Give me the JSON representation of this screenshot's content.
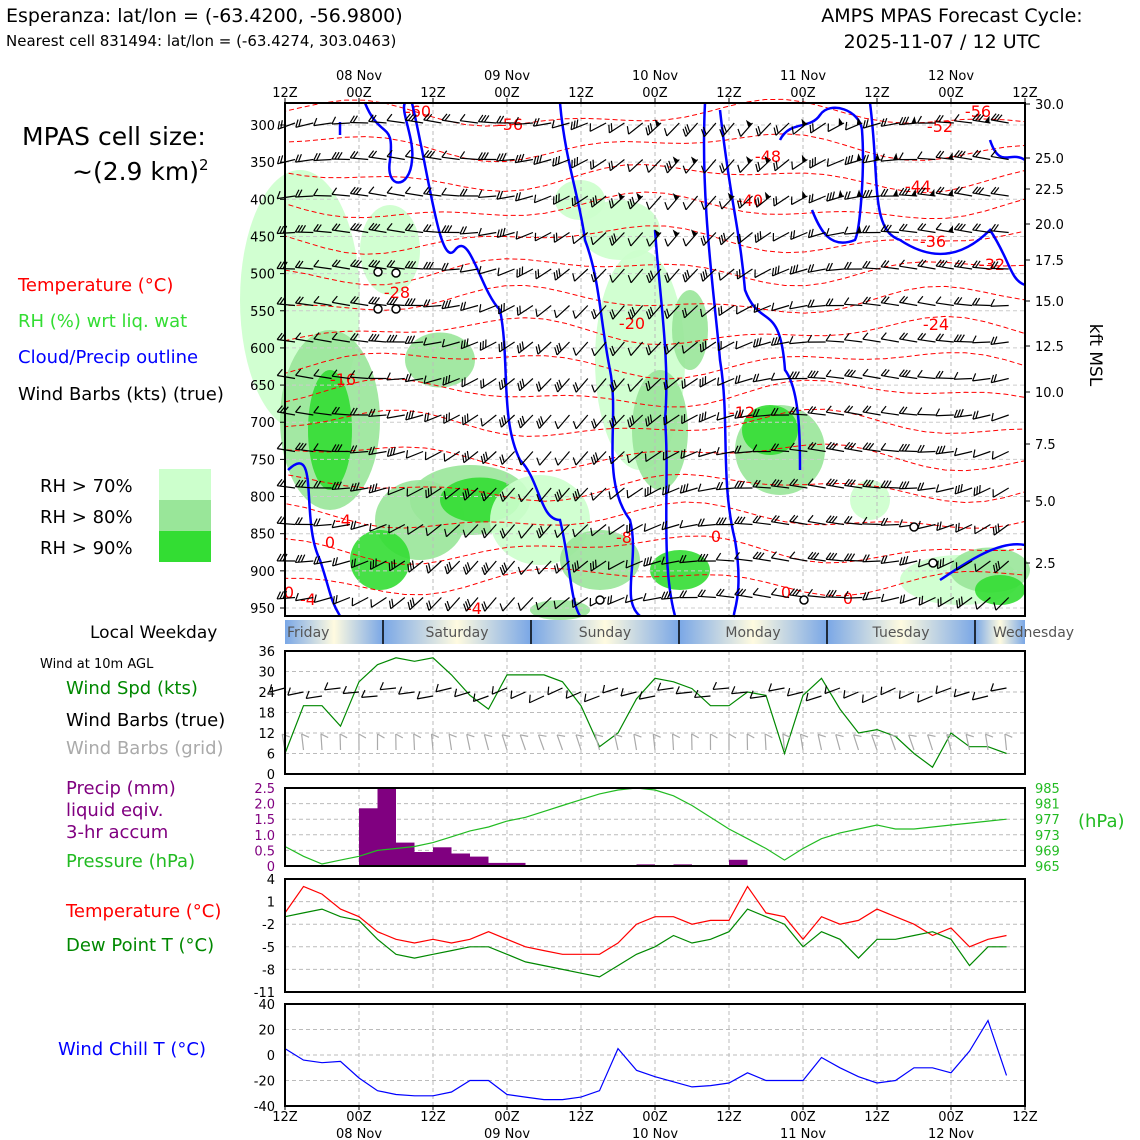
{
  "header": {
    "title_left_1": "Esperanza: lat/lon = (-63.4200, -56.9800)",
    "title_left_2": "Nearest cell 831494: lat/lon = (-63.4274, 303.0463)",
    "title_right_1": "AMPS MPAS Forecast Cycle:",
    "title_right_2": "2025-11-07 / 12 UTC"
  },
  "legend": {
    "cell_size_1": "MPAS cell size:",
    "cell_size_2": "~(2.9 km)",
    "cell_size_sup": "2",
    "temperature": "Temperature (°C)",
    "rh": "RH (%) wrt liq. wat",
    "cloud": "Cloud/Precip outline",
    "wind": "Wind Barbs (kts) (true)",
    "rh70": "RH > 70%",
    "rh80": "RH > 80%",
    "rh90": "RH > 90%",
    "rh70_color": "#ccffcc",
    "rh80_color": "#99e699",
    "rh90_color": "#33dd33"
  },
  "time_axis": {
    "hour_labels": [
      "12Z",
      "00Z",
      "12Z",
      "00Z",
      "12Z",
      "00Z",
      "12Z",
      "00Z",
      "12Z",
      "00Z",
      "12Z"
    ],
    "date_labels": [
      "08 Nov",
      "09 Nov",
      "10 Nov",
      "11 Nov",
      "12 Nov"
    ]
  },
  "weekday": {
    "label": "Local Weekday",
    "days": [
      "Friday",
      "Saturday",
      "Sunday",
      "Monday",
      "Tuesday",
      "Wednesday"
    ]
  },
  "panels": {
    "wind_title": "Wind at 10m AGL",
    "wind_spd": "Wind Spd (kts)",
    "wind_barbs_true": "Wind Barbs (true)",
    "wind_barbs_grid": "Wind Barbs (grid)",
    "precip_1": "Precip (mm)",
    "precip_2": "liquid eqiv.",
    "precip_3": "3-hr accum",
    "pressure": "Pressure (hPa)",
    "hpa_unit": "(hPa)",
    "temp": "Temperature (°C)",
    "dewpoint": "Dew Point T (°C)",
    "windchill": "Wind Chill T (°C)"
  },
  "chart_data": [
    {
      "type": "contour",
      "name": "cross-section",
      "y_pressure_ticks": [
        "300",
        "350",
        "400",
        "450",
        "500",
        "550",
        "600",
        "650",
        "700",
        "750",
        "800",
        "850",
        "900",
        "950"
      ],
      "y_right_kft_ticks": [
        "30.0",
        "25.0",
        "22.5",
        "20.0",
        "17.5",
        "15.0",
        "12.5",
        "10.0",
        "7.5",
        "5.0",
        "2.5"
      ],
      "y_right_label": "kft MSL",
      "temp_contour_labels": [
        "-60",
        "-56",
        "-52",
        "-56",
        "-48",
        "-44",
        "-40",
        "-36",
        "-32",
        "-28",
        "-24",
        "-20",
        "-16",
        "-12",
        "-8",
        "-4",
        "0",
        "0",
        "0",
        "0",
        "0",
        "-4",
        "-4"
      ]
    },
    {
      "type": "line",
      "name": "wind-speed",
      "ylim": [
        0,
        36
      ],
      "yticks": [
        "0",
        "6",
        "12",
        "18",
        "24",
        "30",
        "36"
      ],
      "values": [
        6,
        20,
        20,
        14,
        27,
        32,
        34,
        33,
        34,
        29,
        23,
        19,
        29,
        29,
        29,
        27,
        20,
        8,
        12,
        22,
        28,
        27,
        25,
        20,
        20,
        24,
        23,
        6,
        23,
        28,
        19,
        12,
        13,
        11,
        6,
        2,
        12,
        8,
        8,
        6
      ]
    },
    {
      "type": "bar+line",
      "name": "precip-pressure",
      "precip_ylim": [
        0,
        2.5
      ],
      "precip_ticks": [
        "0",
        "0.5",
        "1.0",
        "1.5",
        "2.0",
        "2.5"
      ],
      "precip_values": [
        0,
        0,
        0,
        0,
        1.85,
        2.5,
        0.75,
        0.45,
        0.6,
        0.4,
        0.3,
        0.1,
        0.1,
        0,
        0,
        0,
        0,
        0,
        0,
        0.05,
        0,
        0.05,
        0.03,
        0,
        0.2,
        0,
        0,
        0,
        0,
        0,
        0,
        0,
        0,
        0,
        0,
        0,
        0,
        0,
        0,
        0
      ],
      "pressure_ylim": [
        965,
        985
      ],
      "pressure_ticks": [
        "965",
        "969",
        "973",
        "977",
        "981",
        "985"
      ],
      "pressure_values": [
        970,
        967.5,
        965.5,
        966.5,
        967.5,
        969,
        969.5,
        970,
        971,
        972.5,
        974,
        975,
        976.5,
        977.5,
        979,
        980.5,
        982,
        983.5,
        984.5,
        985,
        984.5,
        983,
        980.5,
        977.5,
        974.5,
        972,
        969.5,
        966.5,
        969.5,
        972,
        973.5,
        974.5,
        975.5,
        974.5,
        974.5,
        975,
        975.5,
        976,
        976.5,
        977
      ]
    },
    {
      "type": "line",
      "name": "temperature-dewpoint",
      "ylim": [
        -11,
        4
      ],
      "yticks": [
        "-11",
        "-8",
        "-5",
        "-2",
        "1",
        "4"
      ],
      "series": [
        {
          "name": "Temperature",
          "values": [
            -0.5,
            3,
            2,
            0,
            -1,
            -3,
            -4,
            -4.5,
            -4,
            -4.5,
            -4,
            -3,
            -4,
            -5,
            -5.5,
            -6,
            -6,
            -6,
            -4.5,
            -2,
            -1,
            -1,
            -2,
            -1.5,
            -1.5,
            3,
            -0.5,
            -1,
            -4,
            -1,
            -2,
            -1.5,
            0,
            -1,
            -2,
            -3.5,
            -2.5,
            -5,
            -4,
            -3.5
          ]
        },
        {
          "name": "Dew Point T",
          "values": [
            -1,
            -0.5,
            0,
            -1,
            -1.5,
            -4,
            -6,
            -6.5,
            -6,
            -5.5,
            -5,
            -5,
            -6,
            -7,
            -7.5,
            -8,
            -8.5,
            -9,
            -7.5,
            -6,
            -5,
            -3.5,
            -4.5,
            -4,
            -3,
            0,
            -1,
            -2,
            -5,
            -3,
            -4,
            -6.5,
            -4,
            -4,
            -3.5,
            -3,
            -4,
            -7.5,
            -5,
            -5
          ]
        }
      ]
    },
    {
      "type": "line",
      "name": "wind-chill",
      "ylim": [
        -40,
        40
      ],
      "yticks": [
        "-40",
        "-20",
        "0",
        "20",
        "40"
      ],
      "values": [
        5,
        -4,
        -6,
        -5,
        -18,
        -28,
        -31,
        -32,
        -32,
        -29,
        -20,
        -20,
        -31,
        -33,
        -35,
        -35,
        -33,
        -28,
        5,
        -12,
        -17,
        -21,
        -25,
        -24,
        -22,
        -14,
        -20,
        -20,
        -20,
        -2,
        -10,
        -17,
        -22,
        -20,
        -10,
        -10,
        -14,
        3,
        27,
        -16
      ]
    }
  ]
}
